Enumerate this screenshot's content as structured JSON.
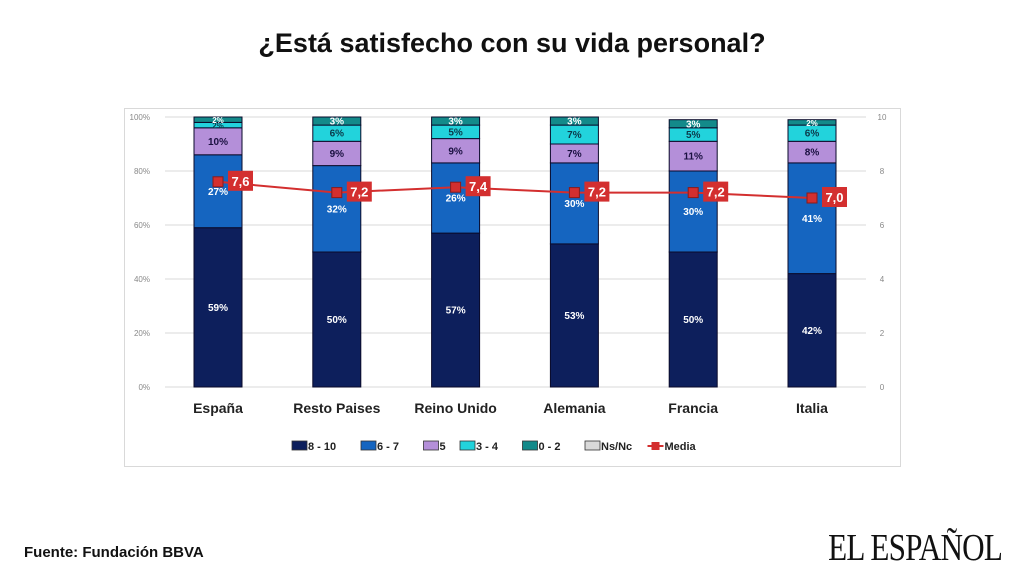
{
  "page": {
    "title": "¿Está satisfecho con su vida personal?",
    "source": "Fuente: Fundación BBVA",
    "logo": "EL ESPAÑOL"
  },
  "chart_data": {
    "type": "bar",
    "stacked": true,
    "title": "¿Está satisfecho con su vida personal?",
    "categories": [
      "España",
      "Resto Paises",
      "Reino Unido",
      "Alemania",
      "Francia",
      "Italia"
    ],
    "series": [
      {
        "name": "8 - 10",
        "color": "#0d1f5c",
        "label_color": "#ffffff",
        "values": [
          59,
          50,
          57,
          53,
          50,
          42
        ]
      },
      {
        "name": "6 - 7",
        "color": "#1565c0",
        "label_color": "#ffffff",
        "values": [
          27,
          32,
          26,
          30,
          30,
          41
        ]
      },
      {
        "name": "5",
        "color": "#b48fd9",
        "label_color": "#1a1040",
        "values": [
          10,
          9,
          9,
          7,
          11,
          8
        ]
      },
      {
        "name": "3 - 4",
        "color": "#22d3dc",
        "label_color": "#0b3a4a",
        "values": [
          2,
          6,
          5,
          7,
          5,
          6
        ]
      },
      {
        "name": "0 - 2",
        "color": "#138a8a",
        "label_color": "#ffffff",
        "values": [
          2,
          3,
          3,
          3,
          3,
          2
        ]
      },
      {
        "name": "Ns/Nc",
        "color": "#d9d9d9",
        "label_color": "#333333",
        "values": [
          0,
          0,
          0,
          0,
          0,
          0
        ]
      }
    ],
    "line_series": {
      "name": "Media",
      "color": "#d32f2f",
      "values": [
        7.6,
        7.2,
        7.4,
        7.2,
        7.2,
        7.0
      ],
      "labels": [
        "7,6",
        "7,2",
        "7,4",
        "7,2",
        "7,2",
        "7,0"
      ]
    },
    "y_left": {
      "ticks": [
        "0%",
        "20%",
        "40%",
        "60%",
        "80%",
        "100%"
      ],
      "range": [
        0,
        100
      ]
    },
    "y_right": {
      "ticks": [
        "0",
        "2",
        "4",
        "6",
        "8",
        "10"
      ],
      "range": [
        0,
        10
      ]
    },
    "grid": true,
    "legend_position": "bottom",
    "legend": [
      "8 - 10",
      "6 - 7",
      "5",
      "3 - 4",
      "0 - 2",
      "Ns/Nc",
      "Media"
    ]
  }
}
